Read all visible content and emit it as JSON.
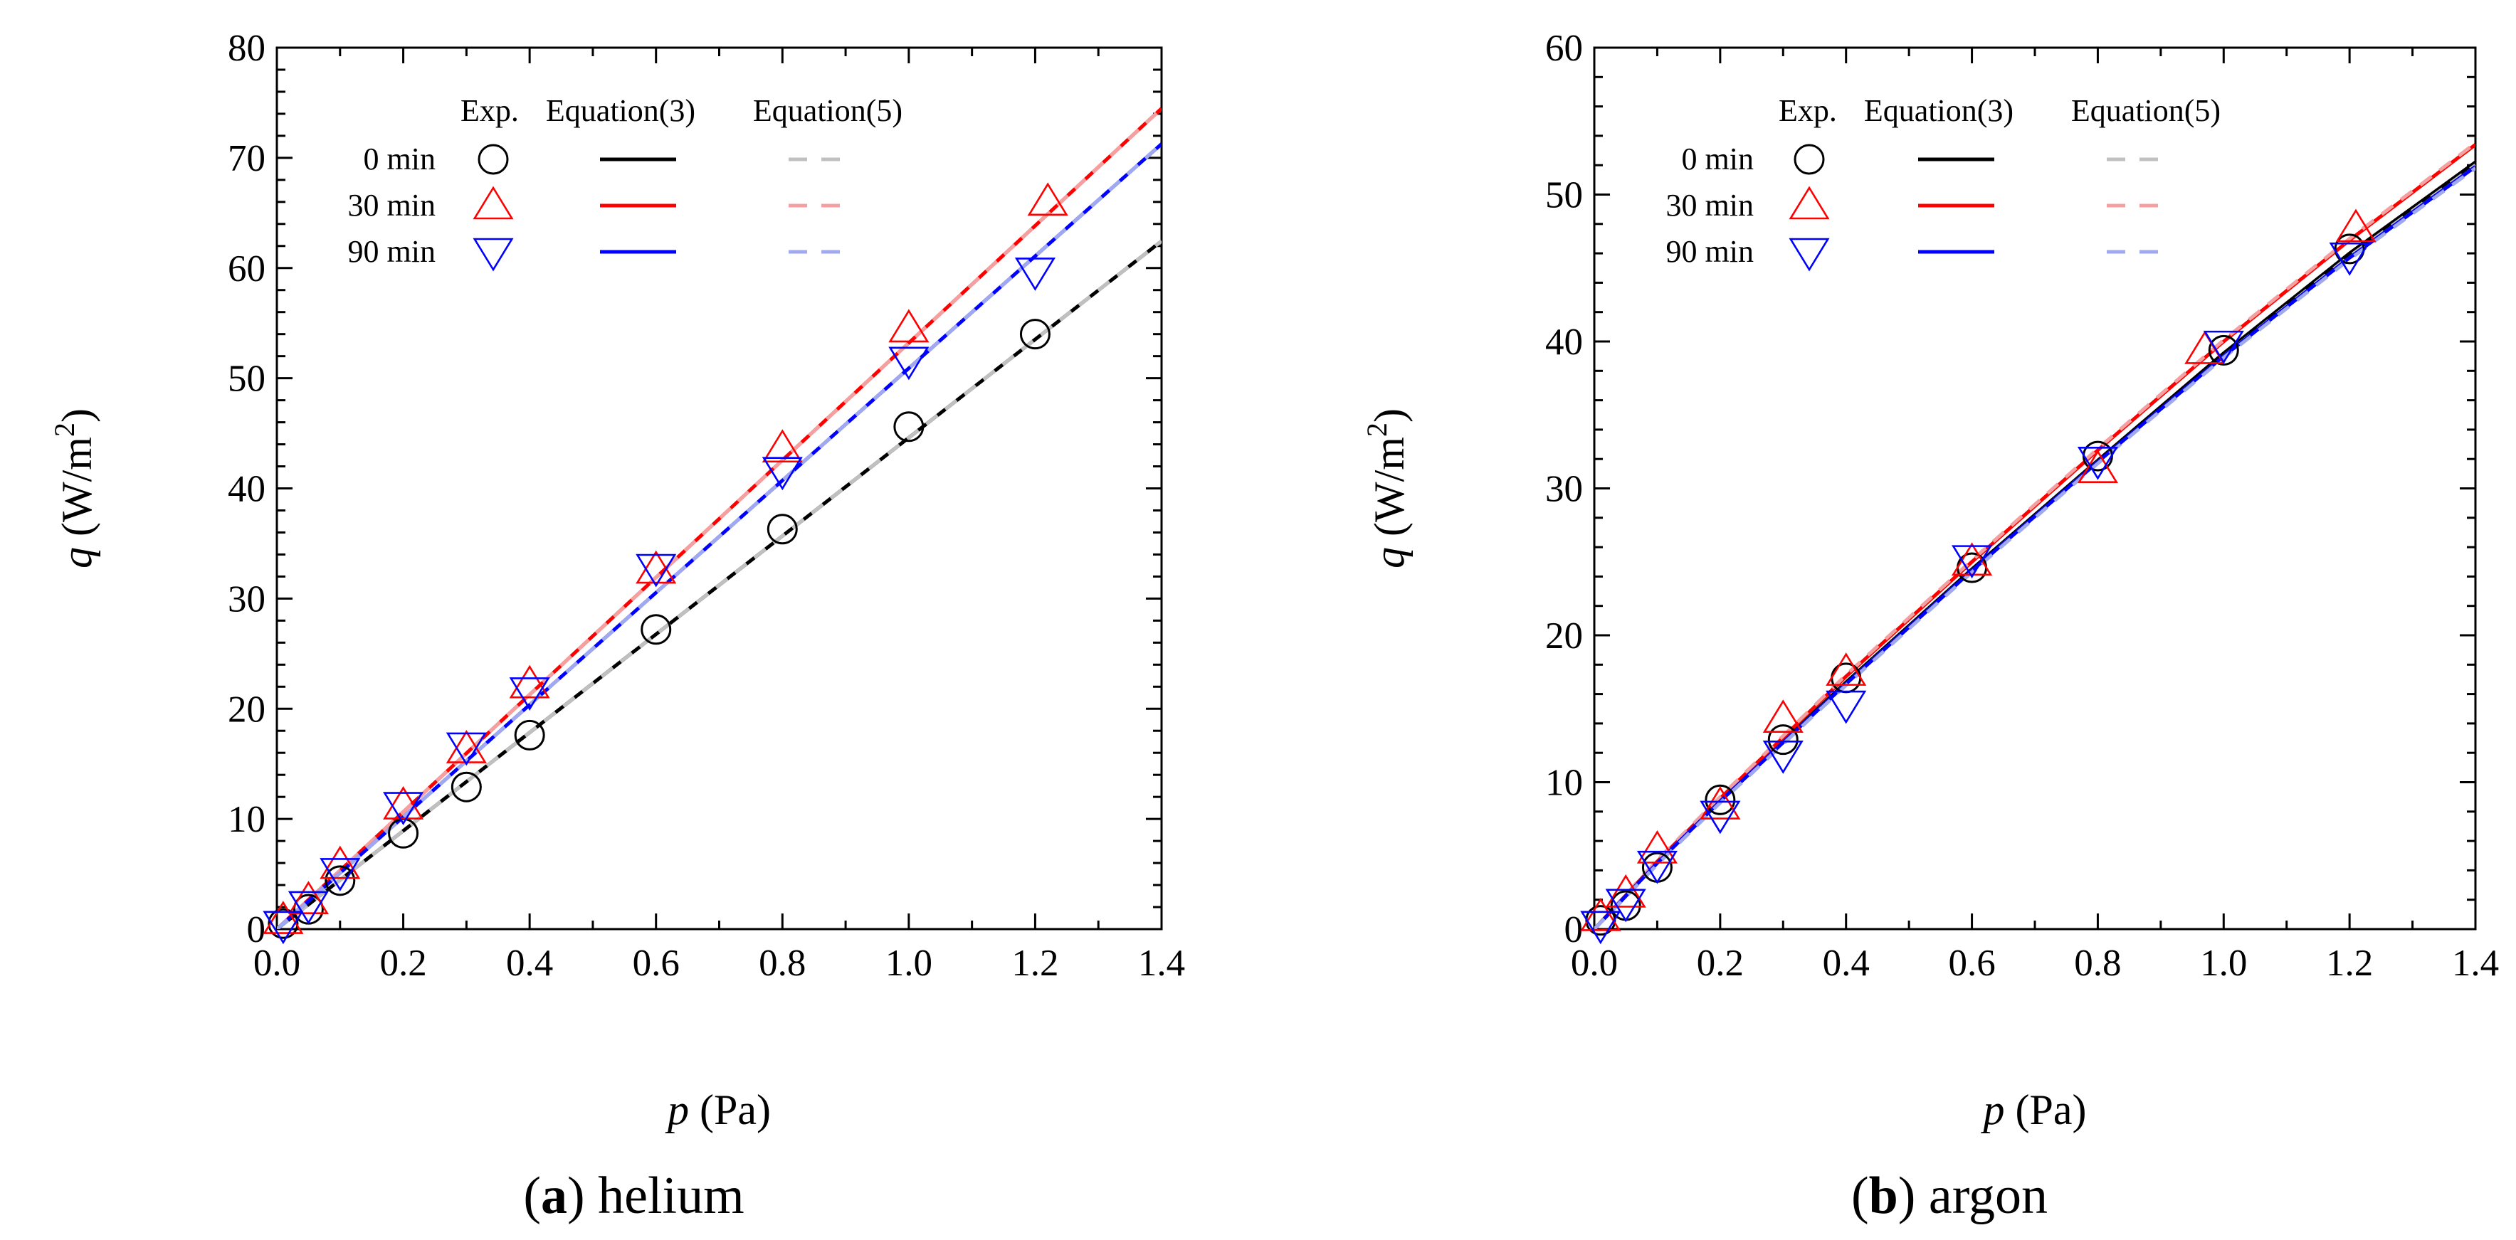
{
  "chart_data": [
    {
      "type": "line",
      "panel": "a",
      "caption": {
        "letter": "a",
        "text": "helium"
      },
      "xlabel": {
        "symbol": "p",
        "unit": "(Pa)"
      },
      "ylabel": {
        "symbol": "q",
        "unit": "(W/m",
        "exp": "2",
        "close": ")"
      },
      "xlim": [
        0,
        1.4
      ],
      "ylim": [
        0,
        80
      ],
      "xticks": [
        "0.0",
        "0.2",
        "0.4",
        "0.6",
        "0.8",
        "1.0",
        "1.2",
        "1.4"
      ],
      "yticks": [
        "0",
        "10",
        "20",
        "30",
        "40",
        "50",
        "60",
        "70",
        "80"
      ],
      "legend_headers": {
        "exp": "Exp.",
        "eq3": "Equation(3)",
        "eq5": "Equation(5)"
      },
      "series": [
        {
          "name": "0 min",
          "marker": "circle",
          "color": "#000000",
          "eq5_color": "#c0c0c0",
          "x": [
            0.01,
            0.05,
            0.1,
            0.2,
            0.3,
            0.4,
            0.6,
            0.8,
            1.0,
            1.2
          ],
          "y": [
            0.5,
            1.8,
            4.4,
            8.7,
            12.9,
            17.6,
            27.2,
            36.3,
            45.6,
            54.0
          ],
          "eq3_slope": 44.6,
          "eq5_slope": 44.6
        },
        {
          "name": "30 min",
          "marker": "triangle-up",
          "color": "#ff0000",
          "eq5_color": "#f5a0a0",
          "x": [
            0.01,
            0.05,
            0.1,
            0.2,
            0.3,
            0.4,
            0.6,
            0.8,
            1.0,
            1.22
          ],
          "y": [
            0.8,
            2.6,
            5.8,
            11.2,
            16.3,
            22.2,
            32.6,
            43.6,
            54.5,
            66.0
          ],
          "eq3_slope": 53.2,
          "eq5_slope": 53.2
        },
        {
          "name": "90 min",
          "marker": "triangle-down",
          "color": "#0000ff",
          "eq5_color": "#a0a8f0",
          "x": [
            0.01,
            0.05,
            0.1,
            0.2,
            0.3,
            0.4,
            0.6,
            0.8,
            1.0,
            1.2
          ],
          "y": [
            0.4,
            2.2,
            5.2,
            11.2,
            16.6,
            21.6,
            32.8,
            41.6,
            51.6,
            59.7
          ],
          "eq3_slope": 50.9,
          "eq5_slope": 50.9
        }
      ]
    },
    {
      "type": "line",
      "panel": "b",
      "caption": {
        "letter": "b",
        "text": "argon"
      },
      "xlabel": {
        "symbol": "p",
        "unit": "(Pa)"
      },
      "ylabel": {
        "symbol": "q",
        "unit": "(W/m",
        "exp": "2",
        "close": ")"
      },
      "xlim": [
        0,
        1.4
      ],
      "ylim": [
        0,
        60
      ],
      "xticks": [
        "0.0",
        "0.2",
        "0.4",
        "0.6",
        "0.8",
        "1.0",
        "1.2",
        "1.4"
      ],
      "yticks": [
        "0",
        "10",
        "20",
        "30",
        "40",
        "50",
        "60"
      ],
      "legend_headers": {
        "exp": "Exp.",
        "eq3": "Equation(3)",
        "eq5": "Equation(5)"
      },
      "series": [
        {
          "name": "0 min",
          "marker": "circle",
          "color": "#000000",
          "eq5_color": "#c0c0c0",
          "x": [
            0.01,
            0.05,
            0.1,
            0.2,
            0.3,
            0.4,
            0.6,
            0.8,
            1.0,
            1.2
          ],
          "y": [
            0.6,
            1.6,
            4.2,
            8.8,
            12.9,
            17.1,
            24.6,
            32.2,
            39.4,
            46.3
          ],
          "eq3_curve": [
            [
              0,
              0
            ],
            [
              0.1,
              4.5
            ],
            [
              0.2,
              8.8
            ],
            [
              0.4,
              16.8
            ],
            [
              0.6,
              24.5
            ],
            [
              0.8,
              31.9
            ],
            [
              1.0,
              39.2
            ],
            [
              1.2,
              46.0
            ],
            [
              1.4,
              52.2
            ]
          ],
          "eq5_curve": [
            [
              0,
              0
            ],
            [
              0.1,
              4.4
            ],
            [
              0.2,
              8.7
            ],
            [
              0.4,
              16.7
            ],
            [
              0.6,
              24.4
            ],
            [
              0.8,
              31.8
            ],
            [
              1.0,
              39.0
            ],
            [
              1.2,
              45.8
            ],
            [
              1.4,
              52.0
            ]
          ]
        },
        {
          "name": "30 min",
          "marker": "triangle-up",
          "color": "#ff0000",
          "eq5_color": "#f5a0a0",
          "x": [
            0.01,
            0.05,
            0.1,
            0.2,
            0.3,
            0.4,
            0.6,
            0.8,
            0.97,
            1.21
          ],
          "y": [
            0.8,
            2.4,
            5.4,
            8.4,
            14.3,
            17.5,
            25.0,
            31.3,
            39.4,
            47.7
          ],
          "eq3_curve": [
            [
              0,
              0
            ],
            [
              0.1,
              4.6
            ],
            [
              0.2,
              8.9
            ],
            [
              0.4,
              17.2
            ],
            [
              0.6,
              25.0
            ],
            [
              0.8,
              32.6
            ],
            [
              1.0,
              40.0
            ],
            [
              1.2,
              46.9
            ],
            [
              1.4,
              53.4
            ]
          ],
          "eq5_curve": [
            [
              0,
              0
            ],
            [
              0.1,
              4.7
            ],
            [
              0.2,
              9.0
            ],
            [
              0.4,
              17.3
            ],
            [
              0.6,
              25.1
            ],
            [
              0.8,
              32.7
            ],
            [
              1.0,
              40.1
            ],
            [
              1.2,
              47.0
            ],
            [
              1.4,
              53.5
            ]
          ]
        },
        {
          "name": "90 min",
          "marker": "triangle-down",
          "color": "#0000ff",
          "eq5_color": "#a0a8f0",
          "x": [
            0.01,
            0.05,
            0.1,
            0.2,
            0.3,
            0.4,
            0.6,
            0.8,
            1.0,
            1.2
          ],
          "y": [
            0.3,
            1.8,
            4.4,
            7.8,
            11.9,
            15.3,
            25.2,
            31.9,
            39.8,
            45.8
          ],
          "eq3_curve": [
            [
              0,
              0
            ],
            [
              0.1,
              4.5
            ],
            [
              0.2,
              8.7
            ],
            [
              0.4,
              16.7
            ],
            [
              0.6,
              24.4
            ],
            [
              0.8,
              31.8
            ],
            [
              1.0,
              39.0
            ],
            [
              1.2,
              45.7
            ],
            [
              1.4,
              51.9
            ]
          ],
          "eq5_curve": [
            [
              0,
              0
            ],
            [
              0.1,
              4.4
            ],
            [
              0.2,
              8.6
            ],
            [
              0.4,
              16.6
            ],
            [
              0.6,
              24.3
            ],
            [
              0.8,
              31.7
            ],
            [
              1.0,
              38.9
            ],
            [
              1.2,
              45.6
            ],
            [
              1.4,
              51.8
            ]
          ]
        }
      ]
    }
  ]
}
